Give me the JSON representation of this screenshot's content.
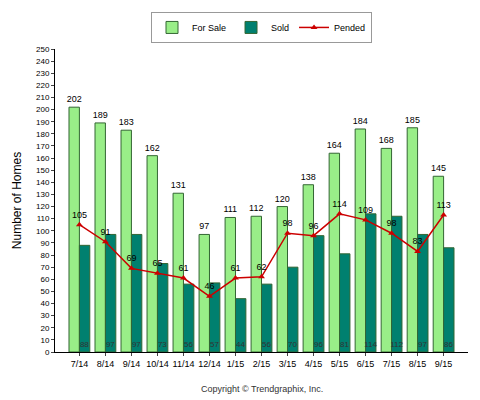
{
  "chart_data": {
    "type": "bar",
    "y_label": "Number of Homes",
    "annotations": [
      "Copyright © Trendgraphix, Inc."
    ],
    "categories": [
      "7/14",
      "8/14",
      "9/14",
      "10/14",
      "11/14",
      "12/14",
      "1/15",
      "2/15",
      "3/15",
      "4/15",
      "5/15",
      "6/15",
      "7/15",
      "8/15",
      "9/15"
    ],
    "series": [
      {
        "name": "For Sale",
        "type": "bar",
        "color": "#99ee88",
        "values": [
          202,
          189,
          183,
          162,
          131,
          97,
          111,
          112,
          120,
          138,
          164,
          184,
          168,
          185,
          145
        ]
      },
      {
        "name": "Sold",
        "type": "bar",
        "color": "#00806f",
        "values": [
          88,
          97,
          97,
          73,
          56,
          57,
          44,
          56,
          70,
          96,
          81,
          114,
          112,
          97,
          86
        ]
      },
      {
        "name": "Pended",
        "type": "line",
        "color": "#cc0000",
        "marker": "triangle-up",
        "line_style": "solid",
        "values": [
          105,
          91,
          69,
          65,
          61,
          46,
          61,
          62,
          98,
          96,
          114,
          109,
          98,
          83,
          113
        ]
      }
    ],
    "ylim": [
      0,
      250
    ],
    "yticks": [
      0,
      10,
      20,
      30,
      40,
      50,
      60,
      70,
      80,
      90,
      100,
      110,
      120,
      130,
      140,
      150,
      160,
      170,
      180,
      190,
      200,
      210,
      220,
      230,
      240,
      250
    ],
    "grid": false,
    "legend": "top",
    "data_labels": true
  }
}
